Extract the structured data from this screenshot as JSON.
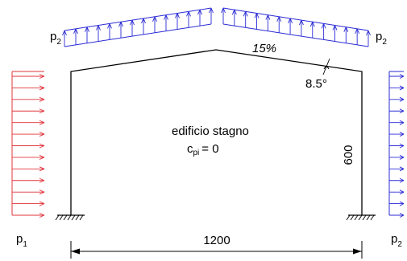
{
  "labels": {
    "p_left_main": "p",
    "p_left_sub": "1",
    "p_right_main": "p",
    "p_right_sub": "2",
    "p_roof_left_main": "p",
    "p_roof_left_sub": "2",
    "p_roof_right_main": "p",
    "p_roof_right_sub": "2",
    "slope": "15%",
    "angle": "8.5°",
    "building_note": "edificio stagno",
    "cpi_main": "c",
    "cpi_sub": "pi",
    "cpi_value": "= 0",
    "height_dim": "600",
    "span_dim": "1200"
  },
  "colors": {
    "pressure": "#e0343a",
    "suction": "#2a2ad6",
    "structure": "#000000"
  },
  "icons": {
    "fixed_support": "ground-hatch-icon",
    "dimension_arrow": "arrowhead-icon"
  }
}
